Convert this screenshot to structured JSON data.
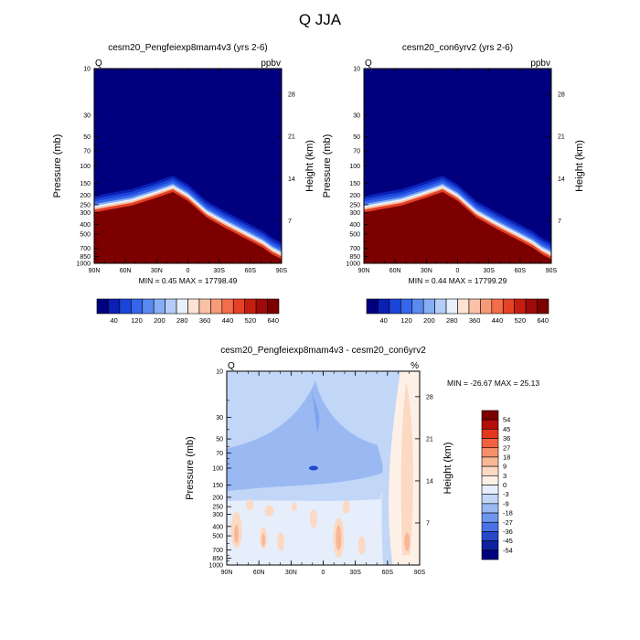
{
  "figure": {
    "title": "Q JJA"
  },
  "chart_data": [
    {
      "type": "contour",
      "title": "cesm20_Pengfeiexp8mam4v3 (yrs 2-6)",
      "left_label": "Q",
      "right_label": "ppbv",
      "ylabel": "Pressure (mb)",
      "y2label": "Height (km)",
      "xticks": [
        "90N",
        "60N",
        "30N",
        "0",
        "30S",
        "60S",
        "90S"
      ],
      "yticks": [
        "10",
        "30",
        "50",
        "70",
        "100",
        "150",
        "200",
        "250",
        "300",
        "400",
        "500",
        "700",
        "850",
        "1000"
      ],
      "y2ticks": [
        "28",
        "21",
        "14",
        "7"
      ],
      "min": 0.45,
      "max": 17798.49,
      "stats_text": "MIN =   0.45  MAX = 17798.49",
      "colorbar_labels": [
        "40",
        "120",
        "200",
        "280",
        "360",
        "440",
        "520",
        "640"
      ],
      "colorbar_colors": [
        "#00007f",
        "#0a1fb4",
        "#1a45d8",
        "#3565ea",
        "#5a8af0",
        "#86aef5",
        "#b4cdf8",
        "#e8f0fc",
        "#fce3d3",
        "#f9c1a6",
        "#f69a78",
        "#f36d4b",
        "#e44125",
        "#c41e11",
        "#a00a08",
        "#7c0000"
      ]
    },
    {
      "type": "contour",
      "title": "cesm20_con6yrv2 (yrs 2-6)",
      "left_label": "Q",
      "right_label": "ppbv",
      "ylabel": "Pressure (mb)",
      "y2label": "Height (km)",
      "xticks": [
        "90N",
        "60N",
        "30N",
        "0",
        "30S",
        "60S",
        "90S"
      ],
      "yticks": [
        "10",
        "30",
        "50",
        "70",
        "100",
        "150",
        "200",
        "250",
        "300",
        "400",
        "500",
        "700",
        "850",
        "1000"
      ],
      "y2ticks": [
        "28",
        "21",
        "14",
        "7"
      ],
      "min": 0.44,
      "max": 17799.29,
      "stats_text": "MIN =   0.44  MAX = 17799.29",
      "colorbar_labels": [
        "40",
        "120",
        "200",
        "280",
        "360",
        "440",
        "520",
        "640"
      ],
      "colorbar_colors": [
        "#00007f",
        "#0a1fb4",
        "#1a45d8",
        "#3565ea",
        "#5a8af0",
        "#86aef5",
        "#b4cdf8",
        "#e8f0fc",
        "#fce3d3",
        "#f9c1a6",
        "#f69a78",
        "#f36d4b",
        "#e44125",
        "#c41e11",
        "#a00a08",
        "#7c0000"
      ]
    },
    {
      "type": "contour",
      "title": "cesm20_Pengfeiexp8mam4v3 - cesm20_con6yrv2",
      "left_label": "Q",
      "right_label": "%",
      "ylabel": "Pressure (mb)",
      "y2label": "Height (km)",
      "xticks": [
        "90N",
        "60N",
        "30N",
        "0",
        "30S",
        "60S",
        "90S"
      ],
      "yticks": [
        "10",
        "30",
        "50",
        "70",
        "100",
        "150",
        "200",
        "250",
        "300",
        "400",
        "500",
        "700",
        "850",
        "1000"
      ],
      "y2ticks": [
        "28",
        "21",
        "14",
        "7"
      ],
      "min": -26.67,
      "max": 25.13,
      "stats_text": "MIN = -26.67  MAX =  25.13",
      "colorbar_labels": [
        "54",
        "45",
        "36",
        "27",
        "18",
        "9",
        "3",
        "0",
        "-3",
        "-9",
        "-18",
        "-27",
        "-36",
        "-45",
        "-54"
      ],
      "colorbar_colors": [
        "#7c0000",
        "#b50f0b",
        "#e2381f",
        "#f3623f",
        "#f6906b",
        "#f9b796",
        "#fcd9c3",
        "#fdf0e7",
        "#e6eefb",
        "#c2d6f7",
        "#9ab9f3",
        "#6f96ee",
        "#4a72e3",
        "#2648c8",
        "#0e22a0",
        "#00007f"
      ]
    }
  ]
}
